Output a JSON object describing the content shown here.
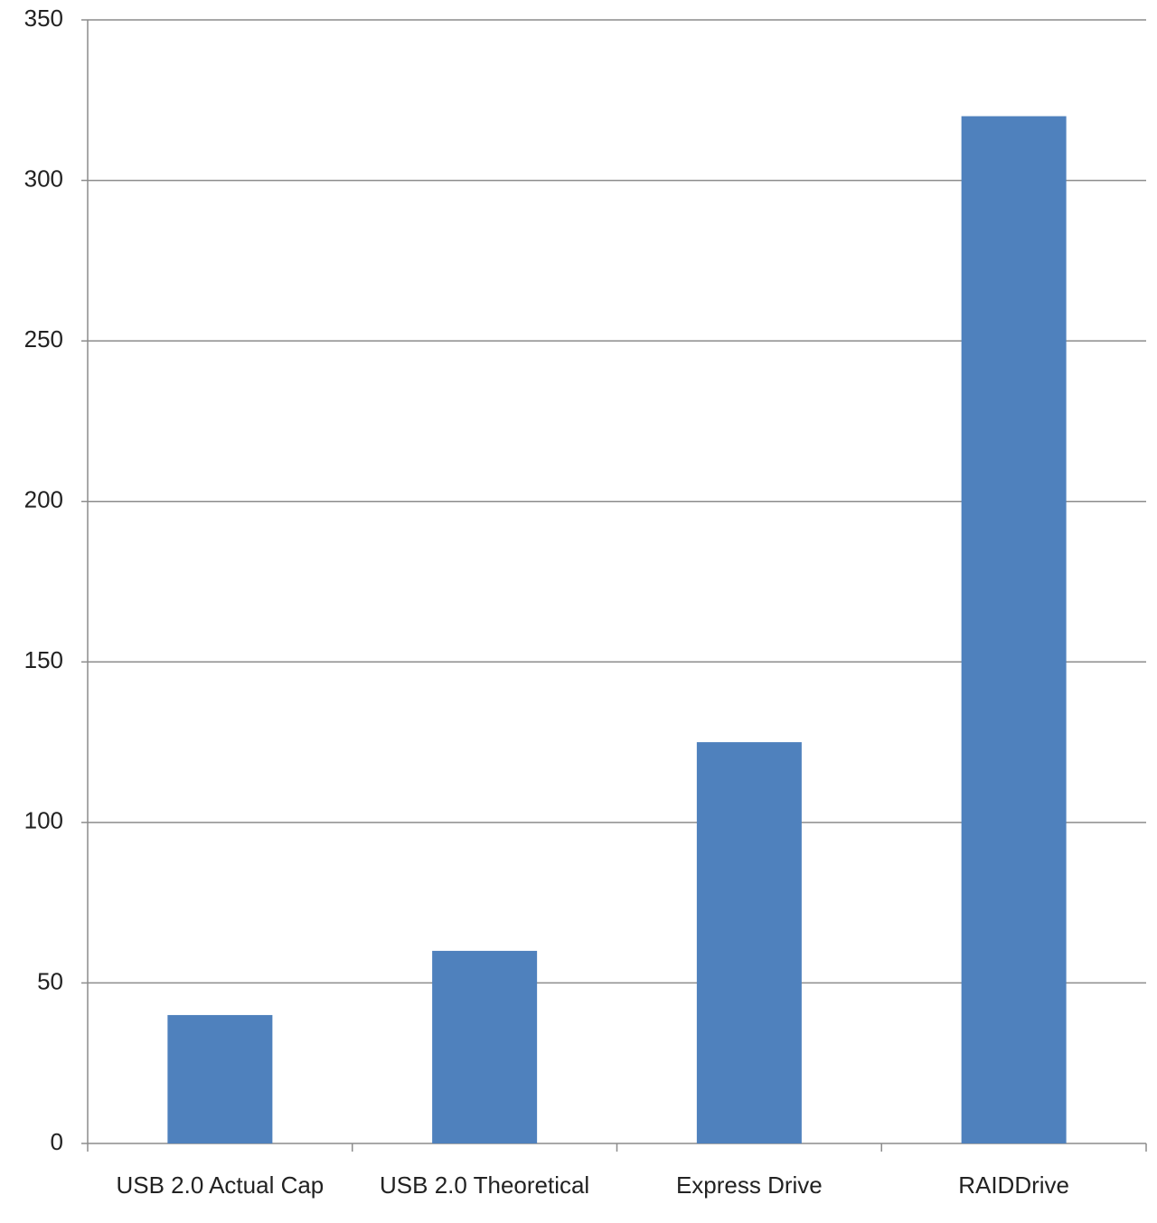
{
  "chart_data": {
    "type": "bar",
    "categories": [
      "USB 2.0 Actual Cap",
      "USB 2.0 Theoretical",
      "Express Drive",
      "RAIDDrive"
    ],
    "values": [
      40,
      60,
      125,
      320
    ],
    "color": "#4f81bd",
    "ylim": [
      0,
      350
    ],
    "yticks": [
      0,
      50,
      100,
      150,
      200,
      250,
      300,
      350
    ],
    "grid": true
  }
}
